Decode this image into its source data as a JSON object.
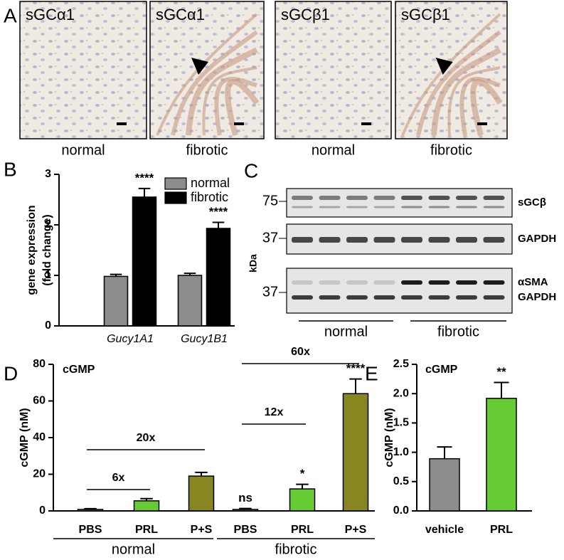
{
  "panel_labels": [
    "A",
    "B",
    "C",
    "D",
    "E"
  ],
  "panel_a": {
    "images": [
      {
        "label": "sGCα1",
        "caption": "normal"
      },
      {
        "label": "sGCα1",
        "caption": "fibrotic"
      },
      {
        "label": "sGCβ1",
        "caption": "normal"
      },
      {
        "label": "sGCβ1",
        "caption": "fibrotic"
      }
    ]
  },
  "panel_c": {
    "unit": "kDa",
    "blots": [
      {
        "marker": "75",
        "labels": [
          "sGCβ"
        ]
      },
      {
        "marker": "37",
        "labels": [
          "GAPDH"
        ]
      },
      {
        "marker": "37",
        "labels": [
          "αSMA",
          "GAPDH"
        ]
      }
    ],
    "groups": [
      "normal",
      "fibrotic"
    ]
  },
  "chart_data": [
    {
      "type": "bar",
      "y_label": [
        "gene expression",
        "(fold change)"
      ],
      "categories": [
        "Gucy1A1",
        "Gucy1B1"
      ],
      "series": [
        {
          "name": "normal",
          "color": "#8c8c8c",
          "values": [
            0.98,
            1.0
          ],
          "errors": [
            0.04,
            0.04
          ]
        },
        {
          "name": "fibrotic",
          "color": "#000000",
          "values": [
            2.55,
            1.93
          ],
          "errors": [
            0.17,
            0.12
          ],
          "annotations": [
            "****",
            "****"
          ]
        }
      ],
      "ylim": [
        0,
        3
      ],
      "yticks": [
        0,
        1,
        2,
        3
      ],
      "legend": "top-right"
    },
    {
      "type": "bar",
      "title": "cGMP",
      "y_label": [
        "cGMP (nM)"
      ],
      "categories": [
        "PBS",
        "PRL",
        "P+S",
        "PBS",
        "PRL",
        "P+S"
      ],
      "groups": [
        "normal",
        "fibrotic"
      ],
      "values": [
        0.8,
        5.5,
        19,
        0.8,
        12,
        64
      ],
      "errors": [
        0.4,
        1.2,
        2,
        0.5,
        2.5,
        8
      ],
      "colors": [
        "#8c8c8c",
        "#66cc33",
        "#878620",
        "#8c8c8c",
        "#66cc33",
        "#878620"
      ],
      "annotations": [
        null,
        null,
        null,
        "ns",
        "*",
        "****"
      ],
      "brackets": [
        "6x",
        "20x",
        "12x",
        "60x"
      ],
      "ylim": [
        0,
        80
      ],
      "yticks": [
        0,
        20,
        40,
        60,
        80
      ]
    },
    {
      "type": "bar",
      "title": "cGMP",
      "y_label": [
        "cGMP (nM)"
      ],
      "categories": [
        "vehicle",
        "PRL"
      ],
      "values": [
        0.89,
        1.92
      ],
      "errors": [
        0.2,
        0.27
      ],
      "colors": [
        "#8c8c8c",
        "#66cc33"
      ],
      "annotations": [
        null,
        "**"
      ],
      "ylim": [
        0,
        2.5
      ],
      "yticks": [
        {
          "value": 0,
          "label": "0.0"
        },
        0.5,
        {
          "value": 1,
          "label": "1.0"
        },
        1.5,
        {
          "value": 2,
          "label": "2.0"
        },
        2.5
      ]
    }
  ]
}
